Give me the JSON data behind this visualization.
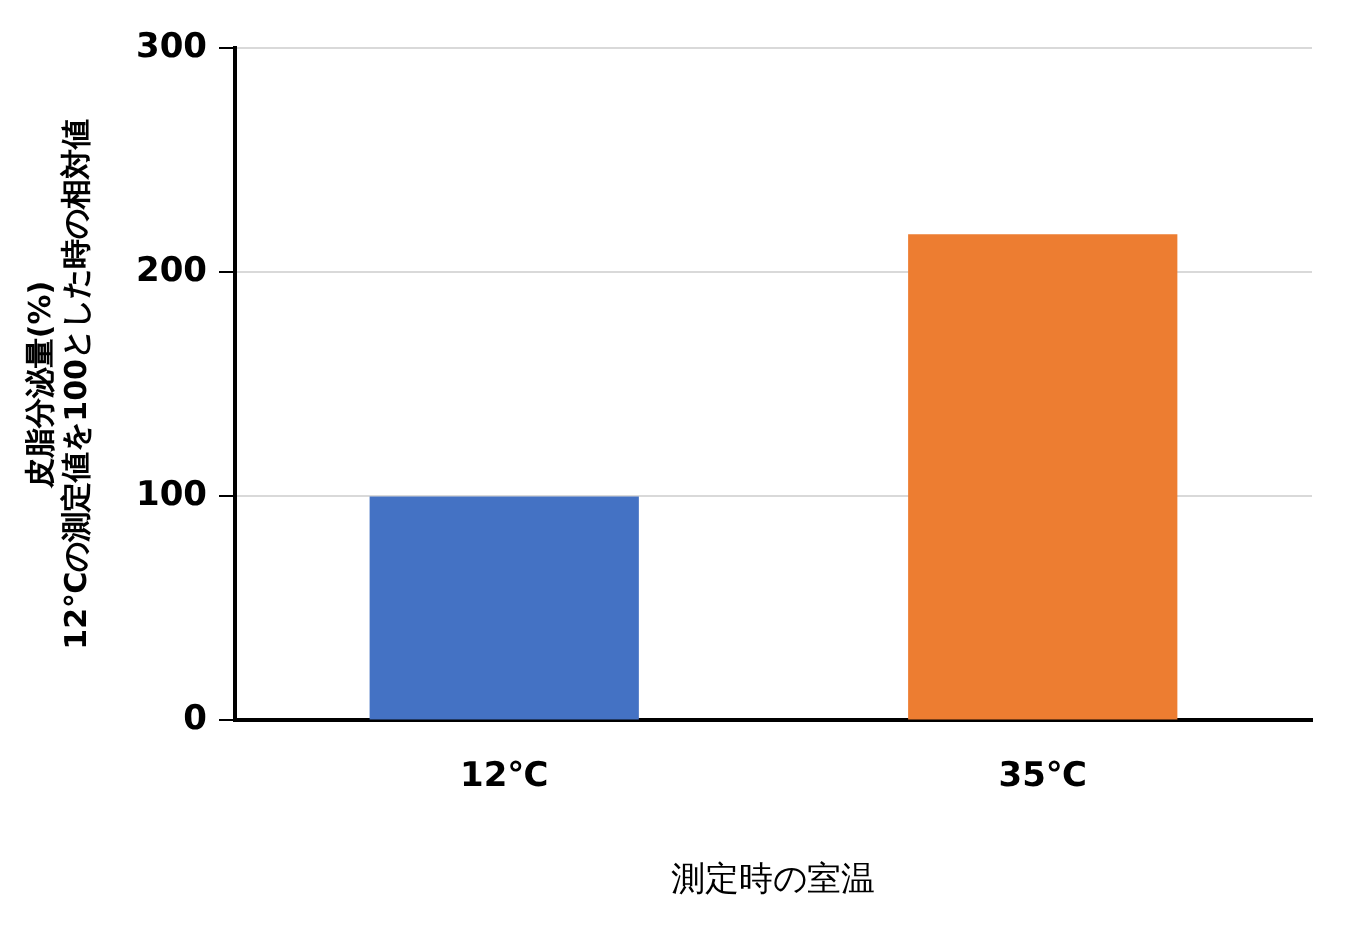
{
  "chart_data": {
    "type": "bar",
    "categories": [
      "12℃",
      "35℃"
    ],
    "values": [
      100,
      217
    ],
    "colors": [
      "#4472c4",
      "#ed7d31"
    ],
    "xlabel": "測定時の室温",
    "ylabel": "皮脂分泌量(%)\n12℃の測定値を100とした時の相対値",
    "ylim": [
      0,
      300
    ],
    "yticks": [
      0,
      100,
      200,
      300
    ],
    "grid": "y",
    "legend": false
  }
}
